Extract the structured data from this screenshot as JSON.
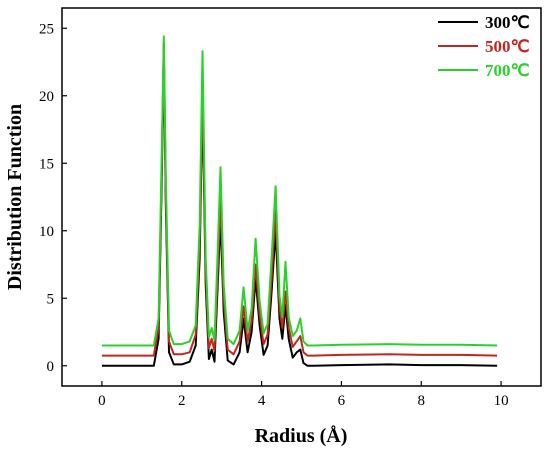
{
  "chart_data": {
    "type": "line",
    "title": "",
    "xlabel": "Radius (Å)",
    "ylabel": "Distribution Function",
    "xlim": [
      -1,
      11
    ],
    "ylim": [
      -1.5,
      26.5
    ],
    "x_ticks": [
      0,
      2,
      4,
      6,
      8,
      10
    ],
    "x_tick_labels": [
      "0",
      "2",
      "4",
      "6",
      "8",
      "10"
    ],
    "y_ticks": [
      0,
      5,
      10,
      15,
      20,
      25
    ],
    "y_tick_labels": [
      "0",
      "5",
      "10",
      "15",
      "20",
      "25"
    ],
    "grid": false,
    "legend_position": "top-right",
    "series": [
      {
        "name": "300℃",
        "color": "#000000",
        "baseline": 0.0,
        "x": [
          0.0,
          1.3,
          1.42,
          1.5,
          1.55,
          1.6,
          1.68,
          1.8,
          2.0,
          2.2,
          2.35,
          2.45,
          2.52,
          2.6,
          2.68,
          2.75,
          2.82,
          2.9,
          2.97,
          3.05,
          3.15,
          3.3,
          3.45,
          3.55,
          3.65,
          3.75,
          3.85,
          3.95,
          4.05,
          4.15,
          4.25,
          4.35,
          4.45,
          4.52,
          4.6,
          4.68,
          4.78,
          4.88,
          4.97,
          5.05,
          5.15,
          5.3,
          6.0,
          7.2,
          8.0,
          9.0,
          9.9
        ],
        "y": [
          0.0,
          0.0,
          2.0,
          14.0,
          23.5,
          12.0,
          1.0,
          0.1,
          0.1,
          0.3,
          1.5,
          8.0,
          20.0,
          6.0,
          0.5,
          1.2,
          0.3,
          6.0,
          11.0,
          4.0,
          0.4,
          0.1,
          1.0,
          3.5,
          1.0,
          2.5,
          6.5,
          3.0,
          0.8,
          1.5,
          5.5,
          10.0,
          3.5,
          2.0,
          4.5,
          2.0,
          0.6,
          1.0,
          1.2,
          0.2,
          0.0,
          0.0,
          0.05,
          0.1,
          0.05,
          0.05,
          0.0
        ]
      },
      {
        "name": "500℃",
        "color": "#c0281e",
        "baseline": 0.75,
        "x": [
          0.0,
          1.3,
          1.42,
          1.5,
          1.55,
          1.6,
          1.68,
          1.8,
          2.0,
          2.2,
          2.35,
          2.45,
          2.52,
          2.6,
          2.68,
          2.75,
          2.82,
          2.9,
          2.97,
          3.05,
          3.15,
          3.3,
          3.45,
          3.55,
          3.65,
          3.75,
          3.85,
          3.95,
          4.05,
          4.15,
          4.25,
          4.35,
          4.45,
          4.52,
          4.6,
          4.68,
          4.78,
          4.88,
          4.97,
          5.05,
          5.15,
          5.3,
          6.0,
          7.2,
          8.0,
          9.0,
          9.9
        ],
        "y": [
          0.75,
          0.75,
          2.8,
          15.0,
          24.0,
          13.0,
          1.8,
          0.85,
          0.85,
          1.0,
          2.3,
          9.0,
          21.0,
          7.0,
          1.3,
          2.0,
          1.1,
          7.0,
          12.5,
          5.0,
          1.2,
          0.85,
          1.8,
          4.4,
          1.8,
          3.3,
          7.5,
          3.8,
          1.6,
          2.3,
          6.5,
          11.5,
          4.3,
          2.8,
          5.5,
          2.8,
          1.4,
          1.8,
          2.2,
          1.0,
          0.75,
          0.75,
          0.8,
          0.85,
          0.8,
          0.8,
          0.75
        ]
      },
      {
        "name": "700℃",
        "color": "#2bd12b",
        "baseline": 1.5,
        "x": [
          0.0,
          1.3,
          1.42,
          1.5,
          1.55,
          1.6,
          1.68,
          1.8,
          2.0,
          2.2,
          2.35,
          2.45,
          2.52,
          2.6,
          2.68,
          2.75,
          2.82,
          2.9,
          2.97,
          3.05,
          3.15,
          3.3,
          3.45,
          3.55,
          3.65,
          3.75,
          3.85,
          3.95,
          4.05,
          4.15,
          4.25,
          4.35,
          4.45,
          4.52,
          4.6,
          4.68,
          4.78,
          4.88,
          4.97,
          5.05,
          5.15,
          5.3,
          6.0,
          7.2,
          8.0,
          9.0,
          9.9
        ],
        "y": [
          1.5,
          1.5,
          3.5,
          16.0,
          24.4,
          14.0,
          2.6,
          1.6,
          1.6,
          1.8,
          3.0,
          10.5,
          23.3,
          8.0,
          2.1,
          2.8,
          1.9,
          8.5,
          14.7,
          6.0,
          2.0,
          1.6,
          2.6,
          5.8,
          2.6,
          4.2,
          9.4,
          4.8,
          2.4,
          3.1,
          8.0,
          13.3,
          5.2,
          3.6,
          7.7,
          3.6,
          2.2,
          2.6,
          3.5,
          1.8,
          1.5,
          1.5,
          1.55,
          1.6,
          1.55,
          1.55,
          1.5
        ]
      }
    ]
  }
}
